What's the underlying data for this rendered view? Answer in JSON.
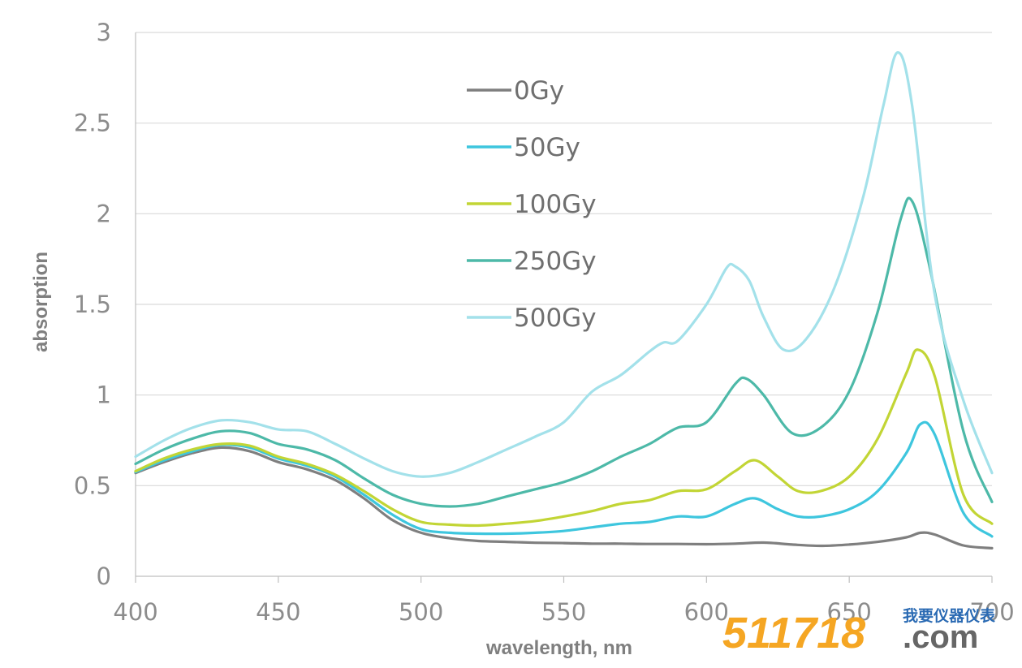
{
  "chart_data": {
    "type": "line",
    "title": "",
    "xlabel": "wavelength, nm",
    "ylabel": "absorption",
    "xlim": [
      400,
      700
    ],
    "ylim": [
      0,
      3
    ],
    "x_ticks": [
      "400",
      "450",
      "500",
      "550",
      "600",
      "650",
      "700"
    ],
    "y_ticks": [
      "0",
      "0.5",
      "1",
      "1.5",
      "2",
      "2.5",
      "3"
    ],
    "grid": "horizontal",
    "legend_position": "top-center",
    "series": [
      {
        "name": "0Gy",
        "color": "#7f7f7f",
        "points": [
          [
            400,
            0.57
          ],
          [
            410,
            0.63
          ],
          [
            420,
            0.68
          ],
          [
            430,
            0.71
          ],
          [
            440,
            0.69
          ],
          [
            450,
            0.63
          ],
          [
            460,
            0.59
          ],
          [
            470,
            0.53
          ],
          [
            480,
            0.43
          ],
          [
            490,
            0.31
          ],
          [
            500,
            0.24
          ],
          [
            510,
            0.21
          ],
          [
            520,
            0.195
          ],
          [
            530,
            0.19
          ],
          [
            540,
            0.185
          ],
          [
            550,
            0.183
          ],
          [
            560,
            0.18
          ],
          [
            570,
            0.18
          ],
          [
            580,
            0.178
          ],
          [
            590,
            0.178
          ],
          [
            600,
            0.177
          ],
          [
            610,
            0.18
          ],
          [
            620,
            0.186
          ],
          [
            630,
            0.175
          ],
          [
            640,
            0.168
          ],
          [
            650,
            0.175
          ],
          [
            660,
            0.19
          ],
          [
            670,
            0.215
          ],
          [
            675,
            0.24
          ],
          [
            680,
            0.23
          ],
          [
            690,
            0.17
          ],
          [
            700,
            0.155
          ]
        ]
      },
      {
        "name": "50Gy",
        "color": "#3ec6de",
        "points": [
          [
            400,
            0.575
          ],
          [
            410,
            0.64
          ],
          [
            420,
            0.69
          ],
          [
            430,
            0.725
          ],
          [
            440,
            0.71
          ],
          [
            450,
            0.65
          ],
          [
            460,
            0.61
          ],
          [
            470,
            0.55
          ],
          [
            480,
            0.45
          ],
          [
            490,
            0.34
          ],
          [
            500,
            0.26
          ],
          [
            510,
            0.24
          ],
          [
            520,
            0.235
          ],
          [
            530,
            0.235
          ],
          [
            540,
            0.24
          ],
          [
            550,
            0.25
          ],
          [
            560,
            0.27
          ],
          [
            570,
            0.29
          ],
          [
            580,
            0.3
          ],
          [
            590,
            0.33
          ],
          [
            600,
            0.33
          ],
          [
            610,
            0.4
          ],
          [
            617,
            0.43
          ],
          [
            625,
            0.37
          ],
          [
            632,
            0.33
          ],
          [
            640,
            0.33
          ],
          [
            650,
            0.37
          ],
          [
            660,
            0.47
          ],
          [
            670,
            0.68
          ],
          [
            675,
            0.84
          ],
          [
            680,
            0.78
          ],
          [
            690,
            0.35
          ],
          [
            700,
            0.22
          ]
        ]
      },
      {
        "name": "100Gy",
        "color": "#c2d535",
        "points": [
          [
            400,
            0.58
          ],
          [
            410,
            0.65
          ],
          [
            420,
            0.7
          ],
          [
            430,
            0.73
          ],
          [
            440,
            0.72
          ],
          [
            450,
            0.66
          ],
          [
            460,
            0.62
          ],
          [
            470,
            0.56
          ],
          [
            480,
            0.47
          ],
          [
            490,
            0.37
          ],
          [
            500,
            0.3
          ],
          [
            510,
            0.285
          ],
          [
            520,
            0.28
          ],
          [
            530,
            0.29
          ],
          [
            540,
            0.305
          ],
          [
            550,
            0.33
          ],
          [
            560,
            0.36
          ],
          [
            570,
            0.4
          ],
          [
            580,
            0.42
          ],
          [
            590,
            0.47
          ],
          [
            600,
            0.48
          ],
          [
            610,
            0.58
          ],
          [
            617,
            0.64
          ],
          [
            625,
            0.55
          ],
          [
            632,
            0.47
          ],
          [
            640,
            0.47
          ],
          [
            650,
            0.55
          ],
          [
            660,
            0.76
          ],
          [
            670,
            1.12
          ],
          [
            674,
            1.25
          ],
          [
            680,
            1.1
          ],
          [
            690,
            0.45
          ],
          [
            700,
            0.29
          ]
        ]
      },
      {
        "name": "250Gy",
        "color": "#4db9a8",
        "points": [
          [
            400,
            0.62
          ],
          [
            410,
            0.7
          ],
          [
            420,
            0.76
          ],
          [
            430,
            0.8
          ],
          [
            440,
            0.79
          ],
          [
            450,
            0.73
          ],
          [
            460,
            0.7
          ],
          [
            470,
            0.64
          ],
          [
            480,
            0.54
          ],
          [
            490,
            0.45
          ],
          [
            500,
            0.4
          ],
          [
            510,
            0.385
          ],
          [
            520,
            0.4
          ],
          [
            530,
            0.44
          ],
          [
            540,
            0.48
          ],
          [
            550,
            0.52
          ],
          [
            560,
            0.58
          ],
          [
            570,
            0.66
          ],
          [
            580,
            0.73
          ],
          [
            590,
            0.82
          ],
          [
            600,
            0.85
          ],
          [
            610,
            1.06
          ],
          [
            614,
            1.09
          ],
          [
            620,
            1.0
          ],
          [
            630,
            0.79
          ],
          [
            640,
            0.82
          ],
          [
            650,
            1.02
          ],
          [
            660,
            1.46
          ],
          [
            668,
            1.97
          ],
          [
            672,
            2.07
          ],
          [
            678,
            1.72
          ],
          [
            690,
            0.8
          ],
          [
            700,
            0.41
          ]
        ]
      },
      {
        "name": "500Gy",
        "color": "#a3e1ea",
        "points": [
          [
            400,
            0.66
          ],
          [
            410,
            0.75
          ],
          [
            420,
            0.82
          ],
          [
            430,
            0.86
          ],
          [
            440,
            0.85
          ],
          [
            450,
            0.81
          ],
          [
            460,
            0.8
          ],
          [
            470,
            0.73
          ],
          [
            480,
            0.65
          ],
          [
            490,
            0.58
          ],
          [
            500,
            0.55
          ],
          [
            510,
            0.57
          ],
          [
            520,
            0.63
          ],
          [
            530,
            0.7
          ],
          [
            540,
            0.77
          ],
          [
            550,
            0.85
          ],
          [
            560,
            1.02
          ],
          [
            570,
            1.11
          ],
          [
            580,
            1.24
          ],
          [
            585,
            1.29
          ],
          [
            590,
            1.3
          ],
          [
            600,
            1.5
          ],
          [
            607,
            1.7
          ],
          [
            610,
            1.71
          ],
          [
            615,
            1.63
          ],
          [
            620,
            1.43
          ],
          [
            627,
            1.25
          ],
          [
            635,
            1.31
          ],
          [
            645,
            1.6
          ],
          [
            655,
            2.1
          ],
          [
            662,
            2.6
          ],
          [
            667,
            2.89
          ],
          [
            672,
            2.6
          ],
          [
            680,
            1.55
          ],
          [
            690,
            0.97
          ],
          [
            700,
            0.57
          ]
        ]
      }
    ]
  },
  "watermark": {
    "number": "511718",
    "cn_text": "我要仪器仪表",
    "suffix": ".com"
  }
}
